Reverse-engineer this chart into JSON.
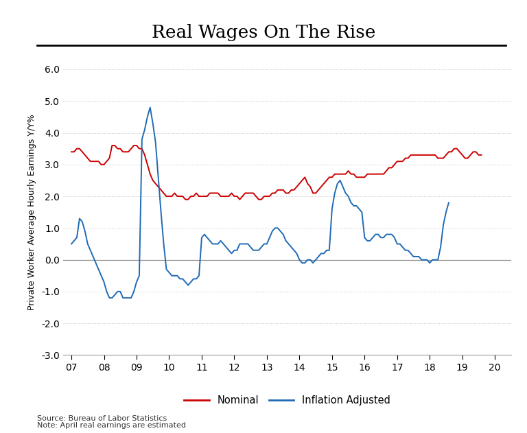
{
  "title": "Real Wages On The Rise",
  "ylabel": "Private Worker Average Hourly Earnings Y/Y%",
  "source_text": "Source: Bureau of Labor Statistics\nNote: April real earnings are estimated",
  "ylim": [
    -3.0,
    6.0
  ],
  "yticks": [
    -3.0,
    -2.0,
    -1.0,
    0.0,
    1.0,
    2.0,
    3.0,
    4.0,
    5.0,
    6.0
  ],
  "xtick_labels": [
    "07",
    "08",
    "09",
    "10",
    "11",
    "12",
    "13",
    "14",
    "15",
    "16",
    "17",
    "18",
    "19",
    "20"
  ],
  "nominal_color": "#cc0000",
  "inflation_color": "#1f6ab5",
  "background_color": "#ffffff",
  "nominal": [
    3.4,
    3.4,
    3.5,
    3.5,
    3.4,
    3.3,
    3.2,
    3.1,
    3.1,
    3.1,
    3.1,
    3.0,
    3.0,
    3.1,
    3.2,
    3.6,
    3.6,
    3.5,
    3.5,
    3.4,
    3.4,
    3.4,
    3.5,
    3.6,
    3.6,
    3.5,
    3.5,
    3.3,
    3.0,
    2.7,
    2.5,
    2.4,
    2.3,
    2.2,
    2.1,
    2.0,
    2.0,
    2.0,
    2.1,
    2.0,
    2.0,
    2.0,
    1.9,
    1.9,
    2.0,
    2.0,
    2.1,
    2.0,
    2.0,
    2.0,
    2.0,
    2.1,
    2.1,
    2.1,
    2.1,
    2.0,
    2.0,
    2.0,
    2.0,
    2.1,
    2.0,
    2.0,
    1.9,
    2.0,
    2.1,
    2.1,
    2.1,
    2.1,
    2.0,
    1.9,
    1.9,
    2.0,
    2.0,
    2.0,
    2.1,
    2.1,
    2.2,
    2.2,
    2.2,
    2.1,
    2.1,
    2.2,
    2.2,
    2.3,
    2.4,
    2.5,
    2.6,
    2.4,
    2.3,
    2.1,
    2.1,
    2.2,
    2.3,
    2.4,
    2.5,
    2.6,
    2.6,
    2.7,
    2.7,
    2.7,
    2.7,
    2.7,
    2.8,
    2.7,
    2.7,
    2.6,
    2.6,
    2.6,
    2.6,
    2.7,
    2.7,
    2.7,
    2.7,
    2.7,
    2.7,
    2.7,
    2.8,
    2.9,
    2.9,
    3.0,
    3.1,
    3.1,
    3.1,
    3.2,
    3.2,
    3.3,
    3.3,
    3.3,
    3.3,
    3.3,
    3.3,
    3.3,
    3.3,
    3.3,
    3.3,
    3.2,
    3.2,
    3.2,
    3.3,
    3.4,
    3.4,
    3.5,
    3.5,
    3.4,
    3.3,
    3.2,
    3.2,
    3.3,
    3.4,
    3.4,
    3.3,
    3.3
  ],
  "inflation_adj": [
    0.5,
    0.6,
    0.7,
    1.3,
    1.2,
    0.9,
    0.5,
    0.3,
    0.1,
    -0.1,
    -0.3,
    -0.5,
    -0.7,
    -1.0,
    -1.2,
    -1.2,
    -1.1,
    -1.0,
    -1.0,
    -1.2,
    -1.2,
    -1.2,
    -1.2,
    -1.0,
    -0.7,
    -0.5,
    3.8,
    4.1,
    4.5,
    4.8,
    4.3,
    3.7,
    2.6,
    1.5,
    0.5,
    -0.3,
    -0.4,
    -0.5,
    -0.5,
    -0.5,
    -0.6,
    -0.6,
    -0.7,
    -0.8,
    -0.7,
    -0.6,
    -0.6,
    -0.5,
    0.7,
    0.8,
    0.7,
    0.6,
    0.5,
    0.5,
    0.5,
    0.6,
    0.5,
    0.4,
    0.3,
    0.2,
    0.3,
    0.3,
    0.5,
    0.5,
    0.5,
    0.5,
    0.4,
    0.3,
    0.3,
    0.3,
    0.4,
    0.5,
    0.5,
    0.7,
    0.9,
    1.0,
    1.0,
    0.9,
    0.8,
    0.6,
    0.5,
    0.4,
    0.3,
    0.2,
    0.0,
    -0.1,
    -0.1,
    0.0,
    0.0,
    -0.1,
    0.0,
    0.1,
    0.2,
    0.2,
    0.3,
    0.3,
    1.6,
    2.1,
    2.4,
    2.5,
    2.3,
    2.1,
    2.0,
    1.8,
    1.7,
    1.7,
    1.6,
    1.5,
    0.7,
    0.6,
    0.6,
    0.7,
    0.8,
    0.8,
    0.7,
    0.7,
    0.8,
    0.8,
    0.8,
    0.7,
    0.5,
    0.5,
    0.4,
    0.3,
    0.3,
    0.2,
    0.1,
    0.1,
    0.1,
    0.0,
    0.0,
    0.0,
    -0.1,
    0.0,
    0.0,
    0.0,
    0.4,
    1.1,
    1.5,
    1.8
  ]
}
